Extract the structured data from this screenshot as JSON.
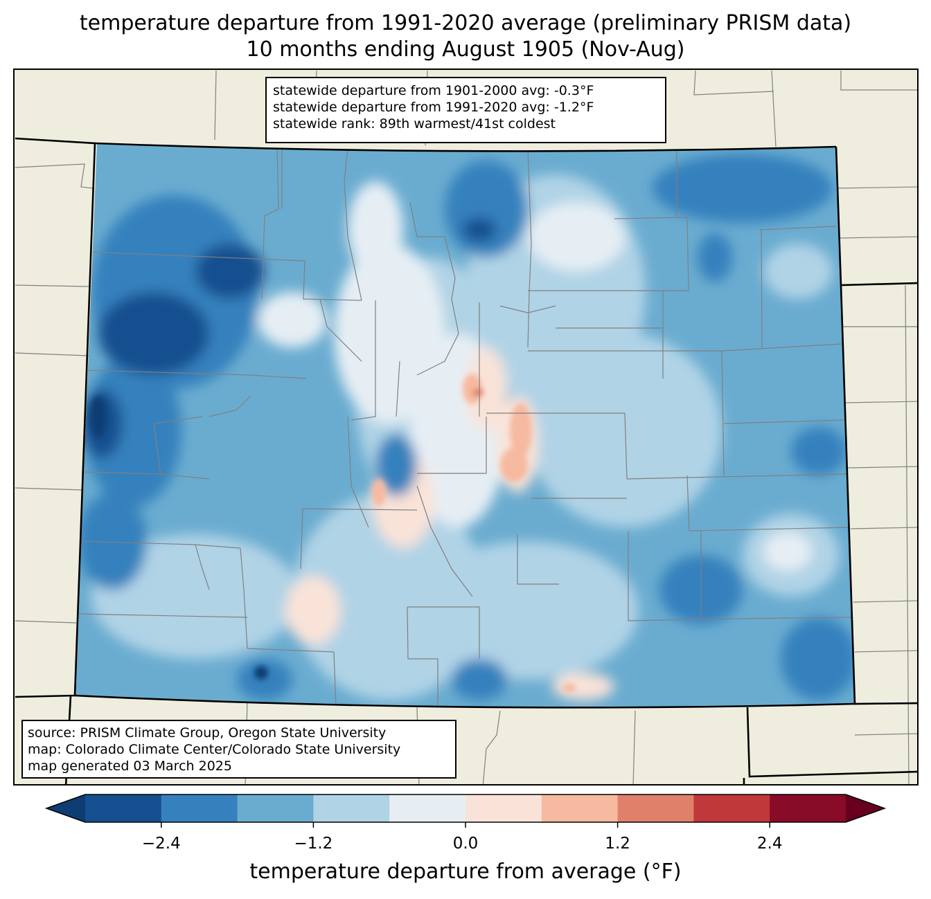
{
  "title": {
    "line1": "temperature departure from 1991-2020 average (preliminary PRISM data)",
    "line2": "10 months ending August 1905 (Nov-Aug)"
  },
  "stats": {
    "line1": "statewide departure from 1901-2000 avg: -0.3°F",
    "line2": "statewide departure from 1991-2020 avg: -1.2°F",
    "line3": "statewide rank: 89th warmest/41st coldest"
  },
  "source": {
    "line1": "source: PRISM Climate Group, Oregon State University",
    "line2": "map: Colorado Climate Center/Colorado State University",
    "line3": "map generated 03 March 2025"
  },
  "colorbar": {
    "label": "temperature departure from average (°F)",
    "boundaries": [
      -3.0,
      -2.4,
      -1.8,
      -1.2,
      -0.6,
      0.0,
      0.6,
      1.2,
      1.8,
      2.4,
      3.0
    ],
    "colors": [
      "#0d3d72",
      "#164f8f",
      "#3581bd",
      "#6aacd0",
      "#b0d3e6",
      "#e6eef4",
      "#f9e3d8",
      "#f6baa0",
      "#e1806a",
      "#c0383a",
      "#880b27",
      "#67001f"
    ],
    "ticks": [
      {
        "value": -2.4,
        "label": "−2.4"
      },
      {
        "value": -1.2,
        "label": "−1.2"
      },
      {
        "value": 0.0,
        "label": "0.0"
      },
      {
        "value": 1.2,
        "label": "1.2"
      },
      {
        "value": 2.4,
        "label": "2.4"
      }
    ]
  },
  "colors": {
    "land": "#efedde",
    "county_lines": "#808080",
    "state_lines": "#000000"
  }
}
